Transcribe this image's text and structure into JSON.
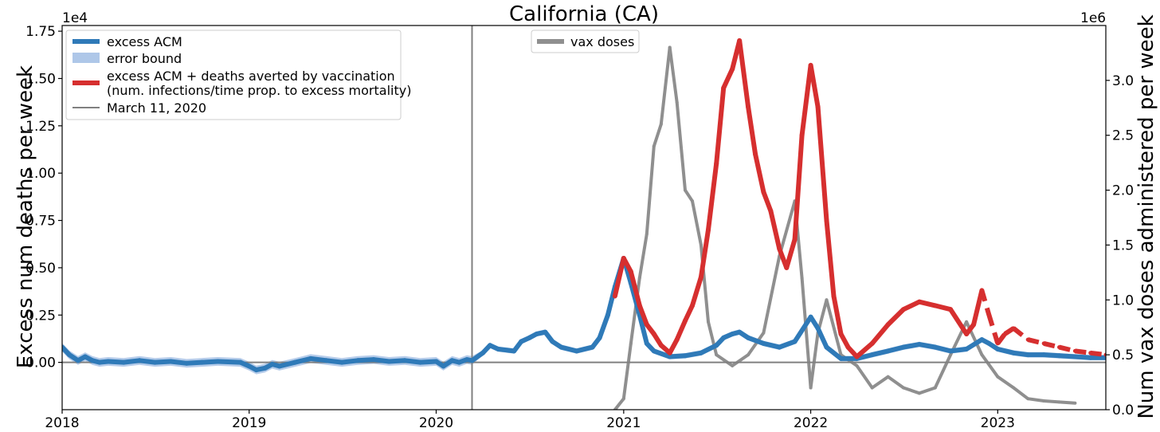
{
  "chart_data": {
    "type": "line",
    "title": "California (CA)",
    "x_axis": {
      "ticks": [
        "2018",
        "2019",
        "2020",
        "2021",
        "2022",
        "2023"
      ],
      "range": [
        "2018-01-01",
        "2023-07-31"
      ]
    },
    "y_left": {
      "label": "Excess num deaths per week",
      "offset_text": "1e4",
      "range": [
        -2500,
        17800
      ],
      "ticks": [
        0,
        2500,
        5000,
        7500,
        10000,
        12500,
        15000,
        17500
      ],
      "tick_labels": [
        "0.00",
        "0.25",
        "0.50",
        "0.75",
        "1.00",
        "1.25",
        "1.50",
        "1.75"
      ]
    },
    "y_right": {
      "label": "Num vax doses administered per week",
      "offset_text": "1e6",
      "range": [
        0,
        3500000
      ],
      "ticks": [
        0,
        500000,
        1000000,
        1500000,
        2000000,
        2500000,
        3000000
      ],
      "tick_labels": [
        "0.0",
        "0.5",
        "1.0",
        "1.5",
        "2.0",
        "2.5",
        "3.0"
      ]
    },
    "legend_left": {
      "placement": "top-left",
      "entries": [
        "excess ACM",
        "error bound",
        "excess ACM + deaths averted by vaccination",
        "(num. infections/time prop. to excess mortality)",
        "March 11, 2020"
      ]
    },
    "legend_right": {
      "placement": "upper-center",
      "entries": [
        "vax doses"
      ]
    },
    "vline": {
      "date": "2020-03-11"
    },
    "hline": {
      "y": 0
    },
    "colors": {
      "excess": "#2f7ab8",
      "error": "#aec7e8",
      "averted": "#d62f2f",
      "vax": "#8f8f8f",
      "ref": "#808080"
    },
    "series": [
      {
        "key": "excess",
        "points": [
          [
            "2018-01-01",
            800
          ],
          [
            "2018-01-15",
            400
          ],
          [
            "2018-02-01",
            100
          ],
          [
            "2018-02-15",
            300
          ],
          [
            "2018-03-01",
            100
          ],
          [
            "2018-03-15",
            0
          ],
          [
            "2018-04-01",
            50
          ],
          [
            "2018-05-01",
            0
          ],
          [
            "2018-06-01",
            100
          ],
          [
            "2018-07-01",
            0
          ],
          [
            "2018-08-01",
            50
          ],
          [
            "2018-09-01",
            -50
          ],
          [
            "2018-10-01",
            0
          ],
          [
            "2018-11-01",
            50
          ],
          [
            "2018-12-15",
            0
          ],
          [
            "2019-01-01",
            -200
          ],
          [
            "2019-01-15",
            -400
          ],
          [
            "2019-02-01",
            -300
          ],
          [
            "2019-02-15",
            -100
          ],
          [
            "2019-03-01",
            -200
          ],
          [
            "2019-04-01",
            0
          ],
          [
            "2019-05-01",
            200
          ],
          [
            "2019-06-01",
            100
          ],
          [
            "2019-07-01",
            0
          ],
          [
            "2019-08-01",
            100
          ],
          [
            "2019-09-01",
            150
          ],
          [
            "2019-10-01",
            50
          ],
          [
            "2019-11-01",
            100
          ],
          [
            "2019-12-01",
            0
          ],
          [
            "2020-01-01",
            50
          ],
          [
            "2020-01-15",
            -200
          ],
          [
            "2020-02-01",
            100
          ],
          [
            "2020-02-15",
            0
          ],
          [
            "2020-03-01",
            150
          ],
          [
            "2020-03-11",
            100
          ],
          [
            "2020-04-01",
            500
          ],
          [
            "2020-04-15",
            900
          ],
          [
            "2020-05-01",
            700
          ],
          [
            "2020-06-01",
            600
          ],
          [
            "2020-06-15",
            1100
          ],
          [
            "2020-07-01",
            1300
          ],
          [
            "2020-07-15",
            1500
          ],
          [
            "2020-08-01",
            1600
          ],
          [
            "2020-08-15",
            1100
          ],
          [
            "2020-09-01",
            800
          ],
          [
            "2020-10-01",
            600
          ],
          [
            "2020-11-01",
            800
          ],
          [
            "2020-11-15",
            1300
          ],
          [
            "2020-12-01",
            2500
          ],
          [
            "2020-12-15",
            4000
          ],
          [
            "2021-01-01",
            5500
          ],
          [
            "2021-01-15",
            4200
          ],
          [
            "2021-02-01",
            2500
          ],
          [
            "2021-02-15",
            1000
          ],
          [
            "2021-03-01",
            600
          ],
          [
            "2021-04-01",
            300
          ],
          [
            "2021-05-01",
            350
          ],
          [
            "2021-06-01",
            500
          ],
          [
            "2021-07-01",
            900
          ],
          [
            "2021-07-15",
            1300
          ],
          [
            "2021-08-01",
            1500
          ],
          [
            "2021-08-15",
            1600
          ],
          [
            "2021-09-01",
            1300
          ],
          [
            "2021-10-01",
            1000
          ],
          [
            "2021-11-01",
            800
          ],
          [
            "2021-12-01",
            1100
          ],
          [
            "2022-01-01",
            2400
          ],
          [
            "2022-01-15",
            1800
          ],
          [
            "2022-02-01",
            800
          ],
          [
            "2022-03-01",
            200
          ],
          [
            "2022-04-01",
            200
          ],
          [
            "2022-05-01",
            400
          ],
          [
            "2022-06-01",
            600
          ],
          [
            "2022-07-01",
            800
          ],
          [
            "2022-08-01",
            950
          ],
          [
            "2022-09-01",
            800
          ],
          [
            "2022-10-01",
            600
          ],
          [
            "2022-11-01",
            700
          ],
          [
            "2022-12-01",
            1200
          ],
          [
            "2022-12-15",
            1000
          ],
          [
            "2023-01-01",
            700
          ],
          [
            "2023-02-01",
            500
          ],
          [
            "2023-03-01",
            400
          ],
          [
            "2023-04-01",
            400
          ],
          [
            "2023-05-01",
            350
          ],
          [
            "2023-06-01",
            300
          ],
          [
            "2023-07-01",
            250
          ],
          [
            "2023-07-31",
            250
          ]
        ]
      },
      {
        "key": "averted",
        "points": [
          [
            "2020-12-15",
            3500
          ],
          [
            "2021-01-01",
            5500
          ],
          [
            "2021-01-15",
            4800
          ],
          [
            "2021-02-01",
            3000
          ],
          [
            "2021-02-15",
            2000
          ],
          [
            "2021-03-01",
            1500
          ],
          [
            "2021-03-15",
            900
          ],
          [
            "2021-04-01",
            500
          ],
          [
            "2021-04-15",
            1200
          ],
          [
            "2021-05-01",
            2200
          ],
          [
            "2021-05-15",
            3000
          ],
          [
            "2021-06-01",
            4500
          ],
          [
            "2021-06-15",
            7000
          ],
          [
            "2021-07-01",
            10500
          ],
          [
            "2021-07-15",
            14500
          ],
          [
            "2021-08-01",
            15500
          ],
          [
            "2021-08-15",
            17000
          ],
          [
            "2021-09-01",
            13500
          ],
          [
            "2021-09-15",
            11000
          ],
          [
            "2021-10-01",
            9000
          ],
          [
            "2021-10-15",
            8000
          ],
          [
            "2021-11-01",
            6000
          ],
          [
            "2021-11-15",
            5000
          ],
          [
            "2021-12-01",
            6500
          ],
          [
            "2021-12-15",
            12000
          ],
          [
            "2022-01-01",
            15700
          ],
          [
            "2022-01-15",
            13500
          ],
          [
            "2022-02-01",
            7500
          ],
          [
            "2022-02-15",
            3500
          ],
          [
            "2022-03-01",
            1500
          ],
          [
            "2022-03-15",
            800
          ],
          [
            "2022-04-01",
            300
          ],
          [
            "2022-05-01",
            1000
          ],
          [
            "2022-06-01",
            2000
          ],
          [
            "2022-07-01",
            2800
          ],
          [
            "2022-08-01",
            3200
          ],
          [
            "2022-09-01",
            3000
          ],
          [
            "2022-10-01",
            2800
          ],
          [
            "2022-11-01",
            1500
          ],
          [
            "2022-11-15",
            2000
          ],
          [
            "2022-12-01",
            3800
          ],
          [
            "2022-12-15",
            2500
          ],
          [
            "2023-01-01",
            1000
          ],
          [
            "2023-01-15",
            1500
          ],
          [
            "2023-02-01",
            1800
          ],
          [
            "2023-03-01",
            1200
          ],
          [
            "2023-04-01",
            1000
          ],
          [
            "2023-05-01",
            800
          ],
          [
            "2023-06-01",
            600
          ],
          [
            "2023-07-01",
            500
          ],
          [
            "2023-07-31",
            400
          ]
        ]
      },
      {
        "key": "vax",
        "axis": "right",
        "points": [
          [
            "2020-12-15",
            0
          ],
          [
            "2021-01-01",
            100000
          ],
          [
            "2021-01-15",
            600000
          ],
          [
            "2021-02-01",
            1200000
          ],
          [
            "2021-02-15",
            1600000
          ],
          [
            "2021-03-01",
            2400000
          ],
          [
            "2021-03-15",
            2600000
          ],
          [
            "2021-04-01",
            3300000
          ],
          [
            "2021-04-15",
            2800000
          ],
          [
            "2021-05-01",
            2000000
          ],
          [
            "2021-05-15",
            1900000
          ],
          [
            "2021-06-01",
            1500000
          ],
          [
            "2021-06-15",
            800000
          ],
          [
            "2021-07-01",
            500000
          ],
          [
            "2021-08-01",
            400000
          ],
          [
            "2021-09-01",
            500000
          ],
          [
            "2021-10-01",
            700000
          ],
          [
            "2021-11-01",
            1400000
          ],
          [
            "2021-12-01",
            1900000
          ],
          [
            "2021-12-15",
            1200000
          ],
          [
            "2022-01-01",
            200000
          ],
          [
            "2022-01-15",
            700000
          ],
          [
            "2022-02-01",
            1000000
          ],
          [
            "2022-03-01",
            500000
          ],
          [
            "2022-04-01",
            400000
          ],
          [
            "2022-05-01",
            200000
          ],
          [
            "2022-06-01",
            300000
          ],
          [
            "2022-07-01",
            200000
          ],
          [
            "2022-08-01",
            150000
          ],
          [
            "2022-09-01",
            200000
          ],
          [
            "2022-10-01",
            500000
          ],
          [
            "2022-11-01",
            800000
          ],
          [
            "2022-12-01",
            500000
          ],
          [
            "2023-01-01",
            300000
          ],
          [
            "2023-02-01",
            200000
          ],
          [
            "2023-03-01",
            100000
          ],
          [
            "2023-04-01",
            80000
          ],
          [
            "2023-05-01",
            70000
          ],
          [
            "2023-06-01",
            60000
          ]
        ]
      }
    ]
  }
}
